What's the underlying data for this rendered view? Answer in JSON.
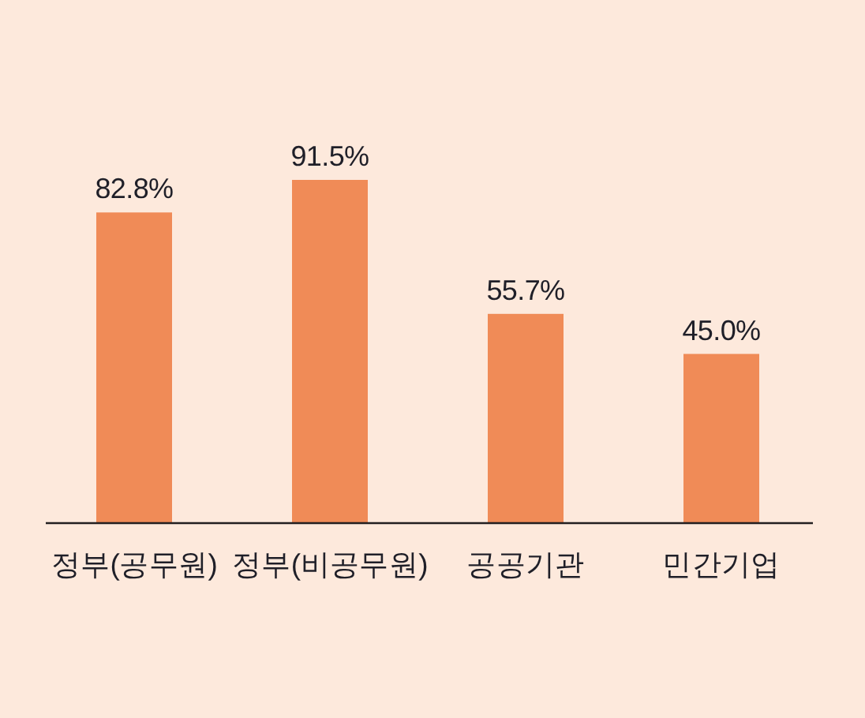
{
  "chart_data": {
    "type": "bar",
    "categories": [
      "정부(공무원)",
      "정부(비공무원)",
      "공공기관",
      "민간기업"
    ],
    "values": [
      82.8,
      91.5,
      55.7,
      45.0
    ],
    "value_labels": [
      "82.8%",
      "91.5%",
      "55.7%",
      "45.0%"
    ],
    "color": "#f08b57"
  }
}
